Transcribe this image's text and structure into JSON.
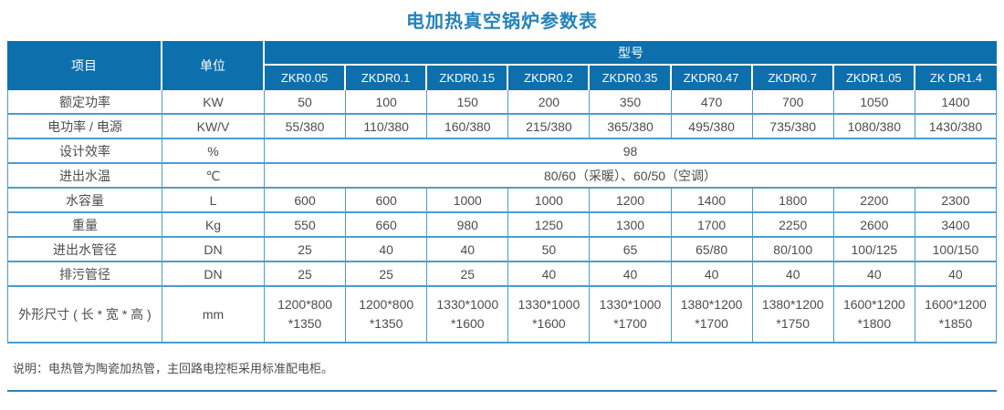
{
  "title": "电加热真空锅炉参数表",
  "table": {
    "header": {
      "item_label": "项目",
      "unit_label": "单位",
      "model_label": "型号",
      "models": [
        "ZKR0.05",
        "ZKDR0.1",
        "ZKDR0.15",
        "ZKDR0.2",
        "ZKDR0.35",
        "ZKDR0.47",
        "ZKDR0.7",
        "ZKDR1.05",
        "ZK DR1.4"
      ]
    },
    "rows": [
      {
        "item": "额定功率",
        "unit": "KW",
        "values": [
          "50",
          "100",
          "150",
          "200",
          "350",
          "470",
          "700",
          "1050",
          "1400"
        ]
      },
      {
        "item": "电功率 / 电源",
        "unit": "KW/V",
        "values": [
          "55/380",
          "110/380",
          "160/380",
          "215/380",
          "365/380",
          "495/380",
          "735/380",
          "1080/380",
          "1430/380"
        ]
      },
      {
        "item": "设计效率",
        "unit": "%",
        "span_value": "98"
      },
      {
        "item": "进出水温",
        "unit": "℃",
        "span_value": "80/60（采暖）、60/50（空调）"
      },
      {
        "item": "水容量",
        "unit": "L",
        "values": [
          "600",
          "600",
          "1000",
          "1000",
          "1200",
          "1400",
          "1800",
          "2200",
          "2300"
        ]
      },
      {
        "item": "重量",
        "unit": "Kg",
        "values": [
          "550",
          "660",
          "980",
          "1250",
          "1300",
          "1700",
          "2250",
          "2600",
          "3400"
        ]
      },
      {
        "item": "进出水管径",
        "unit": "DN",
        "values": [
          "25",
          "40",
          "40",
          "50",
          "65",
          "65/80",
          "80/100",
          "100/125",
          "100/150"
        ]
      },
      {
        "item": "排污管径",
        "unit": "DN",
        "values": [
          "25",
          "25",
          "25",
          "40",
          "40",
          "40",
          "40",
          "40",
          "40"
        ]
      },
      {
        "item": "外形尺寸 ( 长 * 宽 * 高 )",
        "unit": "mm",
        "values": [
          "1200*800\n*1350",
          "1200*800\n*1350",
          "1330*1000\n*1600",
          "1330*1000\n*1600",
          "1330*1000\n*1700",
          "1380*1200\n*1700",
          "1380*1200\n*1750",
          "1600*1200\n*1800",
          "1600*1200\n*1850"
        ]
      }
    ]
  },
  "note": "说明：电热管为陶瓷加热管，主回路电控柜采用标准配电柜。",
  "colors": {
    "header_bg": "#0d70ac",
    "border_light": "#4b9dcf",
    "divider": "#2e82b5",
    "title_color": "#2483ba",
    "text_color": "#4d4d4d"
  }
}
